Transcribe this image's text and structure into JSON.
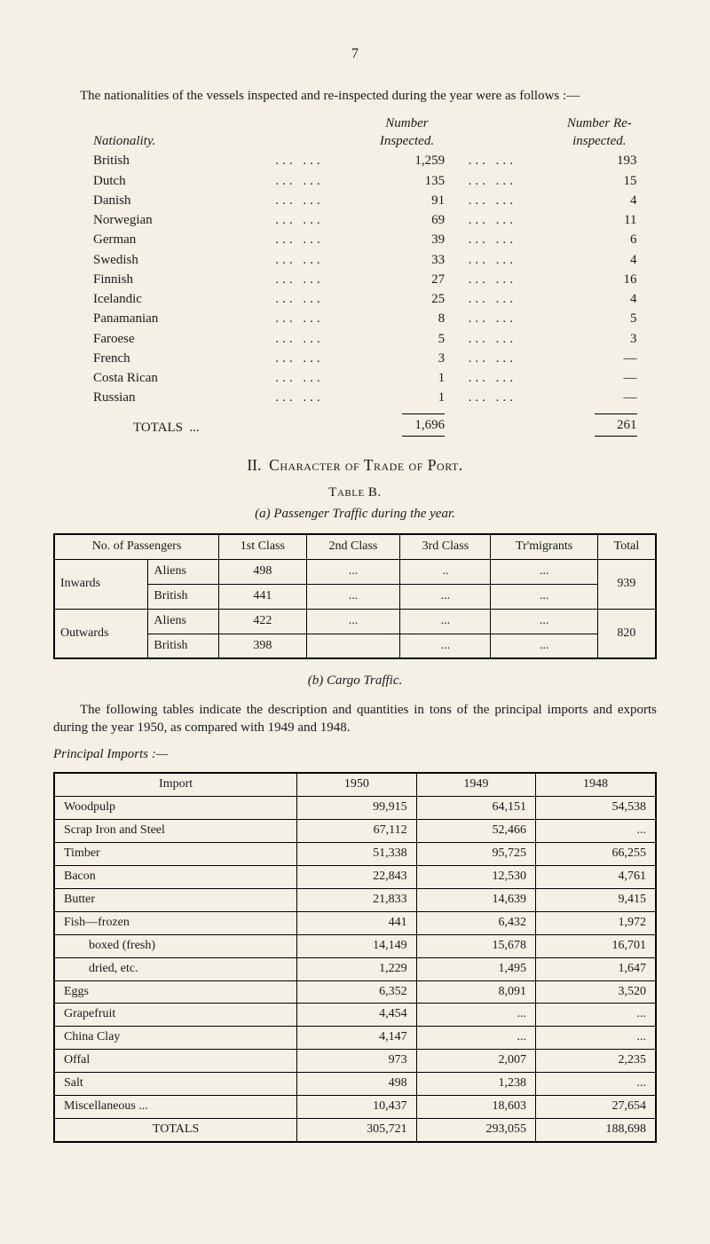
{
  "page_number": "7",
  "intro": "The nationalities of the vessels inspected and re-inspected during the year were as follows :—",
  "nat_header": {
    "col1": "Nationality.",
    "col2": "Number Inspected.",
    "col3": "Number Re-inspected."
  },
  "nationalities": [
    {
      "name": "British",
      "inspected": "1,259",
      "reinspected": "193"
    },
    {
      "name": "Dutch",
      "inspected": "135",
      "reinspected": "15"
    },
    {
      "name": "Danish",
      "inspected": "91",
      "reinspected": "4"
    },
    {
      "name": "Norwegian",
      "inspected": "69",
      "reinspected": "11"
    },
    {
      "name": "German",
      "inspected": "39",
      "reinspected": "6"
    },
    {
      "name": "Swedish",
      "inspected": "33",
      "reinspected": "4"
    },
    {
      "name": "Finnish",
      "inspected": "27",
      "reinspected": "16"
    },
    {
      "name": "Icelandic",
      "inspected": "25",
      "reinspected": "4"
    },
    {
      "name": "Panamanian",
      "inspected": "8",
      "reinspected": "5"
    },
    {
      "name": "Faroese",
      "inspected": "5",
      "reinspected": "3"
    },
    {
      "name": "French",
      "inspected": "3",
      "reinspected": "—"
    },
    {
      "name": "Costa Rican",
      "inspected": "1",
      "reinspected": "—"
    },
    {
      "name": "Russian",
      "inspected": "1",
      "reinspected": "—"
    }
  ],
  "totals_label": "TOTALS",
  "totals_inspected": "1,696",
  "totals_reinspected": "261",
  "section_roman": "II.",
  "section_title": "Character of Trade of Port.",
  "table_b": "Table B.",
  "caption_a": "(a)   Passenger Traffic during the year.",
  "ptable": {
    "headers": [
      "No. of Passengers",
      "1st Class",
      "2nd Class",
      "3rd Class",
      "Tr'migrants",
      "Total"
    ],
    "rows": [
      {
        "dir": "Inwards",
        "sub": "Aliens",
        "c1": "498",
        "c2": "...",
        "c3": "..",
        "c4": "...",
        "tot": "939"
      },
      {
        "dir": "",
        "sub": "British",
        "c1": "441",
        "c2": "...",
        "c3": "...",
        "c4": "...",
        "tot": ""
      },
      {
        "dir": "Outwards",
        "sub": "Aliens",
        "c1": "422",
        "c2": "...",
        "c3": "...",
        "c4": "...",
        "tot": "820"
      },
      {
        "dir": "",
        "sub": "British",
        "c1": "398",
        "c2": "",
        "c3": "...",
        "c4": "...",
        "tot": ""
      }
    ]
  },
  "caption_b": "(b)   Cargo Traffic.",
  "para_b": "The following tables indicate the description and quantities in tons of the principal imports and exports during the year 1950, as compared with 1949 and 1948.",
  "imports_title": "Principal Imports :—",
  "itable": {
    "headers": [
      "Import",
      "1950",
      "1949",
      "1948"
    ],
    "rows": [
      {
        "name": "Woodpulp",
        "y1950": "99,915",
        "y1949": "64,151",
        "y1948": "54,538"
      },
      {
        "name": "Scrap Iron and Steel",
        "y1950": "67,112",
        "y1949": "52,466",
        "y1948": "..."
      },
      {
        "name": "Timber",
        "y1950": "51,338",
        "y1949": "95,725",
        "y1948": "66,255"
      },
      {
        "name": "Bacon",
        "y1950": "22,843",
        "y1949": "12,530",
        "y1948": "4,761"
      },
      {
        "name": "Butter",
        "y1950": "21,833",
        "y1949": "14,639",
        "y1948": "9,415"
      },
      {
        "name": "Fish—frozen",
        "y1950": "441",
        "y1949": "6,432",
        "y1948": "1,972"
      },
      {
        "name": "        boxed (fresh)",
        "y1950": "14,149",
        "y1949": "15,678",
        "y1948": "16,701"
      },
      {
        "name": "        dried, etc.",
        "y1950": "1,229",
        "y1949": "1,495",
        "y1948": "1,647"
      },
      {
        "name": "Eggs",
        "y1950": "6,352",
        "y1949": "8,091",
        "y1948": "3,520"
      },
      {
        "name": "Grapefruit",
        "y1950": "4,454",
        "y1949": "...",
        "y1948": "..."
      },
      {
        "name": "China Clay",
        "y1950": "4,147",
        "y1949": "...",
        "y1948": "..."
      },
      {
        "name": "Offal",
        "y1950": "973",
        "y1949": "2,007",
        "y1948": "2,235"
      },
      {
        "name": "Salt",
        "y1950": "498",
        "y1949": "1,238",
        "y1948": "..."
      },
      {
        "name": "Miscellaneous ...",
        "y1950": "10,437",
        "y1949": "18,603",
        "y1948": "27,654"
      }
    ],
    "totals": {
      "label": "TOTALS",
      "y1950": "305,721",
      "y1949": "293,055",
      "y1948": "188,698"
    }
  }
}
